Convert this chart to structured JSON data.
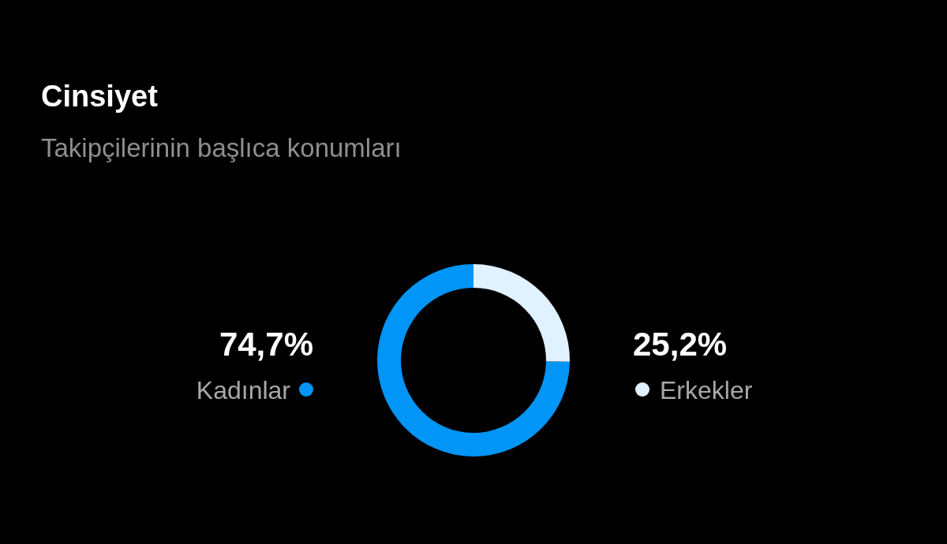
{
  "chart_data": {
    "type": "donut",
    "title": "Cinsiyet",
    "subtitle": "Takipçilerinin başlıca konumları",
    "categories": [
      "Kadınlar",
      "Erkekler"
    ],
    "values": [
      74.7,
      25.2
    ],
    "value_labels": [
      "74,7%",
      "25,2%"
    ],
    "colors": [
      "#0095f6",
      "#e0f1ff"
    ]
  }
}
